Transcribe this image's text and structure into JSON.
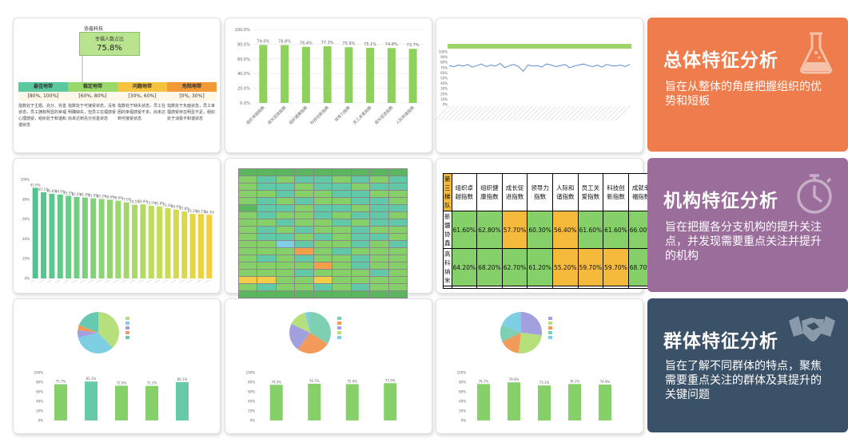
{
  "card1": {
    "header": "协鑫科技",
    "ratio_label": "幸福人数占比",
    "ratio_value": "75.8%",
    "zones": [
      {
        "name": "最佳地带",
        "range": "[80%, 100%]",
        "color": "#5cc8a0",
        "desc": "指数处于主题、充分、完善状态，员工拥有明显的幸福心理感受，组织处于和谐和谐状态"
      },
      {
        "name": "稳定地带",
        "range": "[60%, 80%]",
        "color": "#9bd86a",
        "desc": "指数处于可接受状态，没有明确缺失，但员工在福感受尚未达到充分完善状态"
      },
      {
        "name": "问题地带",
        "range": "[30%, 60%]",
        "color": "#f6c340",
        "desc": "指数处于缺失状态，员工在困的幸福感受不多，尚未达到可接受状态"
      },
      {
        "name": "危险地带",
        "range": "[0%, 30%]",
        "color": "#f29a38",
        "desc": "指数处于负面状态，员工幸福感受存在明显不足，组织处于消极不和谐状态"
      }
    ]
  },
  "card2": {
    "chart_data": {
      "type": "bar",
      "title": "",
      "ylim": [
        0,
        100
      ],
      "yticks": [
        "0.0%",
        "20.0%",
        "40.0%",
        "60.0%",
        "80.0%",
        "100.0%"
      ],
      "categories": [
        "组织卓越指数",
        "成长促进指数",
        "组织健康指数",
        "科技创新指数",
        "领导力指数",
        "员工关爱指数",
        "成长促进指数",
        "人际和谐指数"
      ],
      "values": [
        79.0,
        78.8,
        76.4,
        77.3,
        75.9,
        75.1,
        74.8,
        73.7
      ],
      "labels": [
        "79.0%",
        "78.8%",
        "76.4%",
        "77.3%",
        "75.9%",
        "75.1%",
        "74.8%",
        "73.7%"
      ]
    }
  },
  "card3": {
    "chart_data": {
      "type": "line",
      "legend": [
        "",
        "",
        "",
        "",
        "",
        "",
        "",
        ""
      ],
      "ylim": [
        0,
        100
      ],
      "yticks": [
        "0%",
        "10%",
        "20%",
        "30%",
        "40%",
        "50%",
        "60%",
        "70%",
        "80%",
        "90%",
        "100%"
      ],
      "values": [
        74,
        72,
        75,
        73,
        76,
        71,
        74,
        77,
        72,
        75,
        73,
        78,
        70,
        74,
        76,
        72,
        63,
        75,
        73,
        74,
        71,
        77,
        75,
        72,
        74,
        76,
        70,
        73,
        75,
        77,
        74,
        72,
        75,
        71,
        76,
        74,
        73,
        75,
        72,
        76
      ]
    }
  },
  "card4": {
    "chart_data": {
      "type": "bar",
      "ylim": [
        0,
        100
      ],
      "yticks": [
        "0%",
        "20%",
        "40%",
        "60%",
        "80%",
        "100%"
      ],
      "values": [
        91.6,
        87.1,
        85.6,
        84.9,
        83.5,
        82.4,
        81.8,
        81.0,
        80.3,
        79.6,
        78.6,
        77.0,
        74.5,
        74.9,
        73.5,
        72.8,
        71.0,
        69.6,
        67.8,
        65.2,
        65.1,
        64.3
      ],
      "labels": [
        "91.6%",
        "87.1%",
        "85.6%",
        "84.9%",
        "83.5%",
        "82.4%",
        "81.8%",
        "81.0%",
        "80.3%",
        "79.6%",
        "78.6%",
        "77.0%",
        "74.5%",
        "74.9%",
        "73.5%",
        "72.8%",
        "71.0%",
        "69.6%",
        "67.8%",
        "65.2%",
        "65.1%",
        "64.3%"
      ]
    }
  },
  "card5": {
    "colors": {
      "teal": "#62c9a8",
      "green": "#86d06a",
      "lime": "#b6e07c",
      "yellow": "#f5cb4a",
      "orange": "#f3a04a",
      "blue": "#7ecfe3",
      "header": "#5bb65f"
    },
    "rows": [
      [
        "header",
        "header",
        "header",
        "header",
        "header",
        "header",
        "header",
        "header",
        "header"
      ],
      [
        "green",
        "teal",
        "green",
        "teal",
        "teal",
        "green",
        "teal",
        "green",
        "teal"
      ],
      [
        "green",
        "teal",
        "teal",
        "green",
        "teal",
        "teal",
        "green",
        "teal",
        "teal"
      ],
      [
        "green",
        "green",
        "teal",
        "green",
        "green",
        "teal",
        "teal",
        "green",
        "green"
      ],
      [
        "green",
        "teal",
        "green",
        "teal",
        "green",
        "green",
        "teal",
        "teal",
        "green"
      ],
      [
        "header",
        "teal",
        "teal",
        "green",
        "teal",
        "teal",
        "green",
        "teal",
        "teal"
      ],
      [
        "green",
        "teal",
        "green",
        "green",
        "teal",
        "green",
        "teal",
        "teal",
        "green"
      ],
      [
        "green",
        "green",
        "teal",
        "green",
        "green",
        "teal",
        "green",
        "teal",
        "teal"
      ],
      [
        "green",
        "teal",
        "green",
        "teal",
        "green",
        "green",
        "teal",
        "green",
        "green"
      ],
      [
        "green",
        "teal",
        "teal",
        "green",
        "teal",
        "green",
        "teal",
        "teal",
        "green"
      ],
      [
        "green",
        "green",
        "blue",
        "teal",
        "green",
        "green",
        "teal",
        "green",
        "teal"
      ],
      [
        "green",
        "green",
        "green",
        "orange",
        "green",
        "teal",
        "green",
        "green",
        "green"
      ],
      [
        "green",
        "teal",
        "green",
        "teal",
        "green",
        "green",
        "teal",
        "green",
        "green"
      ],
      [
        "green",
        "green",
        "green",
        "green",
        "orange",
        "green",
        "teal",
        "green",
        "green"
      ],
      [
        "green",
        "green",
        "green",
        "teal",
        "green",
        "green",
        "green",
        "teal",
        "green"
      ],
      [
        "yellow",
        "yellow",
        "green",
        "green",
        "yellow",
        "green",
        "green",
        "green",
        "green"
      ],
      [
        "green",
        "teal",
        "green",
        "green",
        "teal",
        "green",
        "teal",
        "green",
        "green"
      ],
      [
        "header",
        "header",
        "header",
        "header",
        "header",
        "header",
        "header",
        "header",
        "header"
      ]
    ]
  },
  "card6": {
    "header": [
      "第三梯队",
      "组织卓越指数",
      "组织健康指数",
      "成长促进指数",
      "领导力指数",
      "人际和谐指数",
      "员工关爱指数",
      "科技创新指数",
      "成就幸福指数"
    ],
    "rows": [
      {
        "name": "新疆协鑫",
        "values": [
          "61.60%",
          "62.80%",
          "57.70%",
          "60.30%",
          "56.40%",
          "61.60%",
          "61.60%",
          "66.00%"
        ],
        "colors": [
          "#86d06a",
          "#86d06a",
          "#f5b93c",
          "#86d06a",
          "#f5b93c",
          "#86d06a",
          "#86d06a",
          "#86d06a"
        ]
      },
      {
        "name": "高科纳米",
        "values": [
          "64.20%",
          "68.20%",
          "62.70%",
          "61.20%",
          "55.20%",
          "59.70%",
          "59.70%",
          "68.70%"
        ],
        "colors": [
          "#86d06a",
          "#86d06a",
          "#86d06a",
          "#86d06a",
          "#f5b93c",
          "#f5b93c",
          "#f5b93c",
          "#86d06a"
        ]
      },
      {
        "name": "",
        "values": [
          "",
          "",
          "",
          "",
          "",
          "",
          "",
          ""
        ],
        "colors": [
          "#ffffff",
          "#ffffff",
          "#ffffff",
          "#ffffff",
          "#ffffff",
          "#ffffff",
          "#ffffff",
          "#ffffff"
        ]
      }
    ],
    "header_color": "#f5b93c"
  },
  "card7": {
    "chart_data": [
      {
        "type": "pie",
        "values": [
          38,
          33,
          6,
          4,
          19
        ],
        "colors": [
          "#b6e07c",
          "#7ecfe3",
          "#a3a0e0",
          "#f29a5a",
          "#66c9b0"
        ],
        "legend": [
          "",
          "",
          "",
          "",
          ""
        ]
      },
      {
        "type": "bar",
        "ylim": [
          0,
          100
        ],
        "values": [
          75.7,
          81.3,
          72.6,
          72.2,
          80.1
        ],
        "labels": [
          "75.7%",
          "81.3%",
          "72.6%",
          "72.2%",
          "80.1%"
        ],
        "colors": [
          "#86d06a",
          "#66c9a8",
          "#86d06a",
          "#86d06a",
          "#66c9a8"
        ],
        "categories": [
          "",
          "",
          "",
          "",
          ""
        ]
      }
    ]
  },
  "card8": {
    "chart_data": [
      {
        "type": "pie",
        "values": [
          34,
          26,
          22,
          14,
          4
        ],
        "colors": [
          "#7fd0b3",
          "#f29a5a",
          "#a3a0e0",
          "#b6e07c",
          "#7ecfe3"
        ],
        "legend": [
          "",
          "",
          "",
          "",
          ""
        ]
      },
      {
        "type": "bar",
        "ylim": [
          0,
          100
        ],
        "values": [
          74.5,
          76.7,
          75.9,
          77.9
        ],
        "labels": [
          "74.5%",
          "76.7%",
          "75.9%",
          "77.9%"
        ],
        "colors": [
          "#86d06a",
          "#86d06a",
          "#86d06a",
          "#86d06a"
        ],
        "categories": [
          "",
          "",
          "",
          ""
        ]
      }
    ]
  },
  "card9": {
    "chart_data": [
      {
        "type": "pie",
        "values": [
          27,
          25,
          16,
          13,
          19
        ],
        "colors": [
          "#a3a0e0",
          "#b6e07c",
          "#f29a5a",
          "#7fd0b3",
          "#7ecfe3"
        ],
        "legend": [
          "",
          "",
          "",
          "",
          ""
        ]
      },
      {
        "type": "bar",
        "ylim": [
          0,
          100
        ],
        "values": [
          76.1,
          79.6,
          73.1,
          76.1,
          74.9
        ],
        "labels": [
          "76.1%",
          "79.6%",
          "73.1%",
          "76.1%",
          "74.9%"
        ],
        "colors": [
          "#86d06a",
          "#86d06a",
          "#86d06a",
          "#86d06a",
          "#86d06a"
        ],
        "categories": [
          "",
          "",
          "",
          "",
          ""
        ]
      }
    ]
  },
  "panels": [
    {
      "title": "总体特征分析",
      "desc": "旨在从整体的角度把握组织的优势和短板",
      "color": "#ee7c4c",
      "icon": "flask-icon"
    },
    {
      "title": "机构特征分析",
      "desc": "旨在把握各分支机构的提升关注点，并发现需要重点关注并提升的机构",
      "color": "#9a6d9b",
      "icon": "stopwatch-icon"
    },
    {
      "title": "群体特征分析",
      "desc": "旨在了解不同群体的特点，聚焦需要重点关注的群体及其提升的关键问题",
      "color": "#3b5168",
      "icon": "handshake-icon"
    }
  ]
}
